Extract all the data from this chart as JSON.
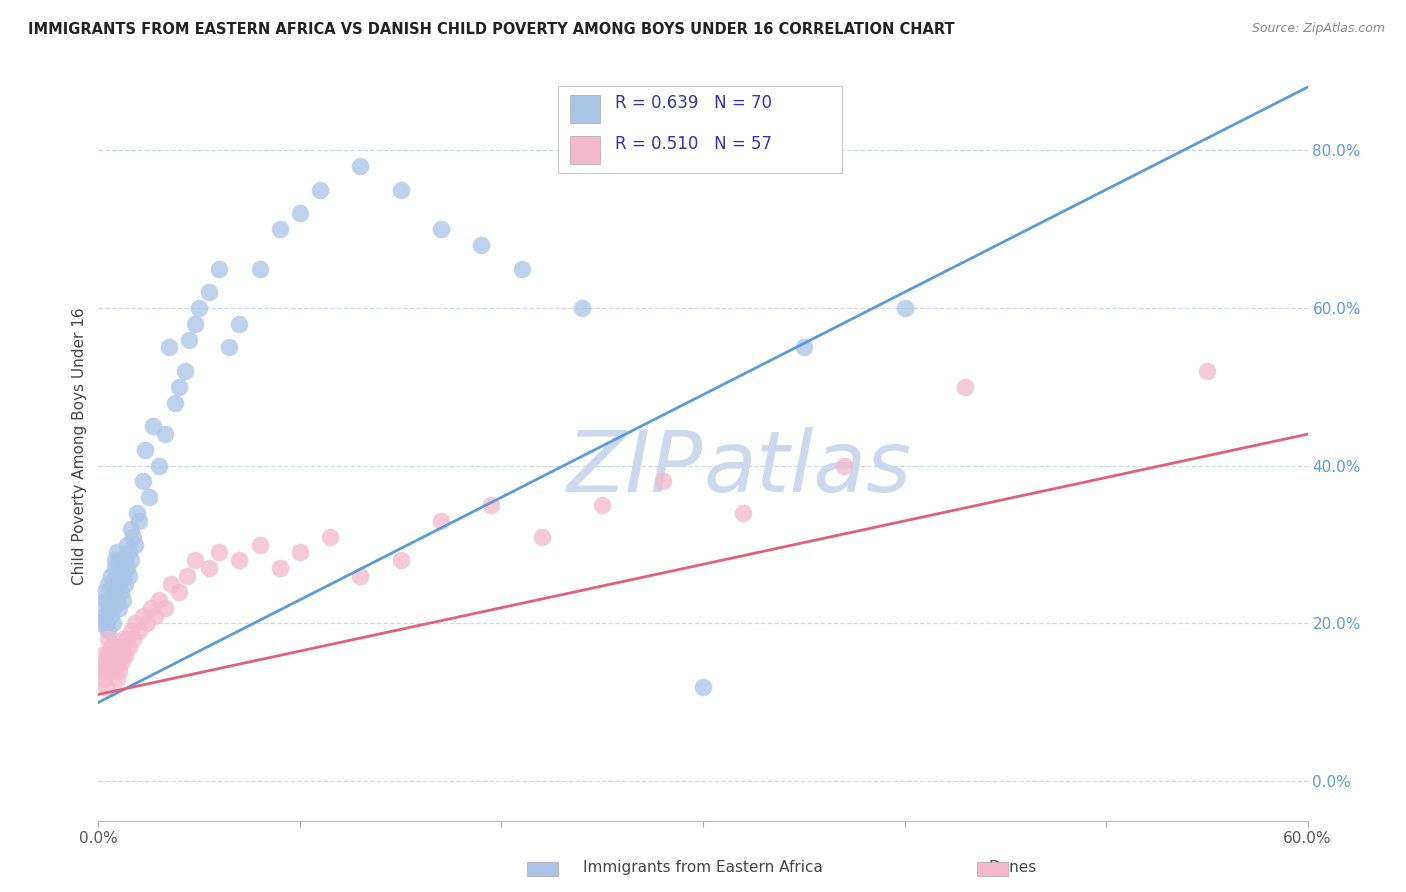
{
  "title": "IMMIGRANTS FROM EASTERN AFRICA VS DANISH CHILD POVERTY AMONG BOYS UNDER 16 CORRELATION CHART",
  "source": "Source: ZipAtlas.com",
  "ylabel": "Child Poverty Among Boys Under 16",
  "legend_label1": "Immigrants from Eastern Africa",
  "legend_label2": "Danes",
  "R1": 0.639,
  "N1": 70,
  "R2": 0.51,
  "N2": 57,
  "xmin": 0.0,
  "xmax": 0.6,
  "ymin": -0.05,
  "ymax": 0.9,
  "color_blue": "#aac4e8",
  "color_blue_line": "#5b9bd5",
  "color_pink": "#f4b8cc",
  "color_pink_line": "#e0607a",
  "color_right_axis": "#5b9bd5",
  "color_text_legend": "#3333aa",
  "watermark_color": "#ccd8ee",
  "grid_color": "#d0d8e8",
  "blue_line_x0": 0.0,
  "blue_line_y0": 0.1,
  "blue_line_x1": 0.6,
  "blue_line_y1": 0.88,
  "pink_line_x0": 0.0,
  "pink_line_y0": 0.11,
  "pink_line_x1": 0.6,
  "pink_line_y1": 0.44,
  "blue_x": [
    0.001,
    0.002,
    0.003,
    0.003,
    0.004,
    0.004,
    0.005,
    0.005,
    0.005,
    0.006,
    0.006,
    0.006,
    0.007,
    0.007,
    0.007,
    0.008,
    0.008,
    0.008,
    0.009,
    0.009,
    0.009,
    0.01,
    0.01,
    0.01,
    0.011,
    0.011,
    0.012,
    0.012,
    0.013,
    0.013,
    0.014,
    0.014,
    0.015,
    0.015,
    0.016,
    0.016,
    0.017,
    0.018,
    0.019,
    0.02,
    0.022,
    0.023,
    0.025,
    0.027,
    0.03,
    0.033,
    0.035,
    0.038,
    0.04,
    0.043,
    0.045,
    0.048,
    0.05,
    0.055,
    0.06,
    0.065,
    0.07,
    0.08,
    0.09,
    0.1,
    0.11,
    0.13,
    0.15,
    0.17,
    0.19,
    0.21,
    0.24,
    0.3,
    0.35,
    0.4
  ],
  "blue_y": [
    0.2,
    0.22,
    0.21,
    0.24,
    0.2,
    0.23,
    0.19,
    0.22,
    0.25,
    0.21,
    0.23,
    0.26,
    0.2,
    0.22,
    0.25,
    0.24,
    0.27,
    0.28,
    0.23,
    0.26,
    0.29,
    0.22,
    0.25,
    0.28,
    0.24,
    0.27,
    0.23,
    0.26,
    0.25,
    0.28,
    0.3,
    0.27,
    0.26,
    0.29,
    0.28,
    0.32,
    0.31,
    0.3,
    0.34,
    0.33,
    0.38,
    0.42,
    0.36,
    0.45,
    0.4,
    0.44,
    0.55,
    0.48,
    0.5,
    0.52,
    0.56,
    0.58,
    0.6,
    0.62,
    0.65,
    0.55,
    0.58,
    0.65,
    0.7,
    0.72,
    0.75,
    0.78,
    0.75,
    0.7,
    0.68,
    0.65,
    0.6,
    0.12,
    0.55,
    0.6
  ],
  "pink_x": [
    0.001,
    0.002,
    0.003,
    0.003,
    0.004,
    0.004,
    0.005,
    0.005,
    0.006,
    0.006,
    0.007,
    0.007,
    0.008,
    0.008,
    0.009,
    0.009,
    0.01,
    0.01,
    0.011,
    0.011,
    0.012,
    0.012,
    0.013,
    0.014,
    0.015,
    0.016,
    0.017,
    0.018,
    0.02,
    0.022,
    0.024,
    0.026,
    0.028,
    0.03,
    0.033,
    0.036,
    0.04,
    0.044,
    0.048,
    0.055,
    0.06,
    0.07,
    0.08,
    0.09,
    0.1,
    0.115,
    0.13,
    0.15,
    0.17,
    0.195,
    0.22,
    0.25,
    0.28,
    0.32,
    0.37,
    0.43,
    0.55
  ],
  "pink_y": [
    0.14,
    0.16,
    0.13,
    0.15,
    0.12,
    0.14,
    0.16,
    0.18,
    0.15,
    0.17,
    0.14,
    0.16,
    0.15,
    0.17,
    0.13,
    0.15,
    0.14,
    0.16,
    0.15,
    0.17,
    0.16,
    0.18,
    0.16,
    0.18,
    0.17,
    0.19,
    0.18,
    0.2,
    0.19,
    0.21,
    0.2,
    0.22,
    0.21,
    0.23,
    0.22,
    0.25,
    0.24,
    0.26,
    0.28,
    0.27,
    0.29,
    0.28,
    0.3,
    0.27,
    0.29,
    0.31,
    0.26,
    0.28,
    0.33,
    0.35,
    0.31,
    0.35,
    0.38,
    0.34,
    0.4,
    0.5,
    0.52
  ]
}
